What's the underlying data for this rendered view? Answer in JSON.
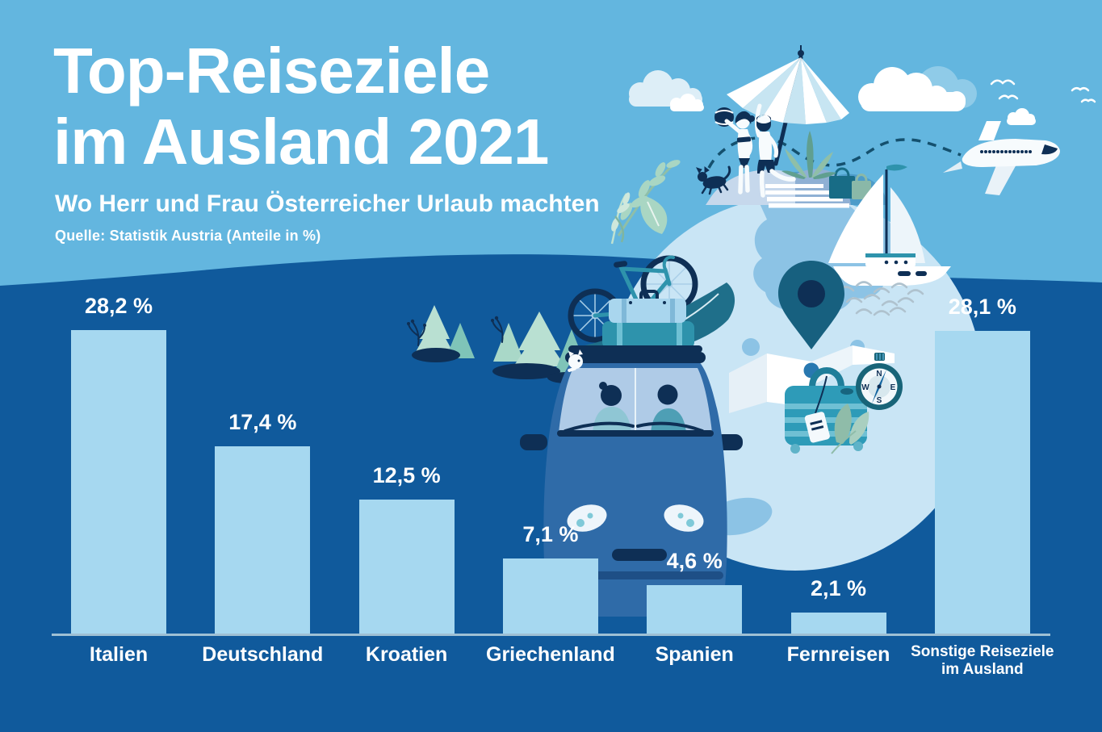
{
  "header": {
    "title_line1": "Top-Reiseziele",
    "title_line2": "im Ausland 2021",
    "subtitle": "Wo Herr und Frau Österreicher Urlaub machten",
    "source": "Quelle: Statistik Austria  (Anteile in %)"
  },
  "chart_data": {
    "type": "bar",
    "title": "Top-Reiseziele im Ausland 2021",
    "subtitle": "Wo Herr und Frau Österreicher Urlaub machten",
    "source": "Quelle: Statistik Austria (Anteile in %)",
    "unit": "percent share",
    "categories": [
      "Italien",
      "Deutschland",
      "Kroatien",
      "Griechenland",
      "Spanien",
      "Fernreisen",
      "Sonstige Reiseziele im Ausland"
    ],
    "values": [
      28.2,
      17.4,
      12.5,
      7.1,
      4.6,
      2.1,
      28.1
    ],
    "value_labels": [
      "28,2 %",
      "17,4 %",
      "12,5 %",
      "7,1 %",
      "4,6 %",
      "2,1 %",
      "28,1 %"
    ],
    "category_display": [
      [
        "Italien"
      ],
      [
        "Deutschland"
      ],
      [
        "Kroatien"
      ],
      [
        "Griechenland"
      ],
      [
        "Spanien"
      ],
      [
        "Fernreisen"
      ],
      [
        "Sonstige Reiseziele",
        "im Ausland"
      ]
    ],
    "ylim": [
      0,
      30
    ],
    "grid": false,
    "legend": null,
    "bar_color": "#A6D8F0",
    "axis_line_color": "#9FC0D4",
    "label_color": "#FFFFFF"
  },
  "colors": {
    "sky": "#63B6DF",
    "sea_background": "#105A9C",
    "bar": "#A6D8F0",
    "text": "#FFFFFF",
    "illustration_navy": "#0E2F55",
    "illustration_teal": "#2E93AC",
    "globe_water": "#C9E5F5",
    "globe_land": "#8CC3E5"
  },
  "illustration": {
    "alt": "Flat travel illustration: couple with beach ball and dog under a parasol on top of a globe, airplane with dashed flight path, sailboat, clouds and birds, pine trees, bicycle, car with roof luggage and surfboard, folded map with location pin, suitcase with tag and compass",
    "icons": [
      "globe-icon",
      "parasol-icon",
      "beach-couple",
      "beach-ball-icon",
      "dog-icon",
      "airplane-icon",
      "flight-path-dashes",
      "sailboat-icon",
      "cloud-icon",
      "bird-icon",
      "pine-trees",
      "bicycle-icon",
      "car-icon",
      "roof-suitcases",
      "surfboard-icon",
      "folded-map-icon",
      "location-pin-icon",
      "suitcase-icon",
      "luggage-tag-icon",
      "compass-icon",
      "shopping-bags",
      "agave-plant",
      "leaf-branches",
      "steps",
      "sea-waves"
    ]
  }
}
